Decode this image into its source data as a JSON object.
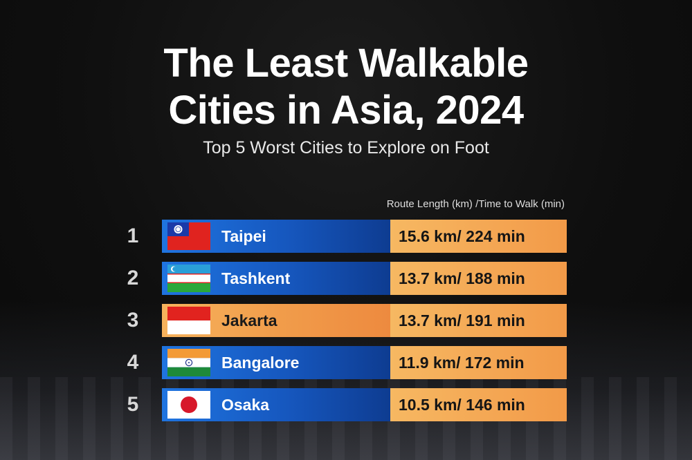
{
  "title_line1": "The Least Walkable",
  "title_line2": "Cities in Asia, 2024",
  "subtitle": "Top 5 Worst Cities to Explore on Foot",
  "column_header": "Route Length (km) /Time to Walk (min)",
  "colors": {
    "blue_bar": "#1657be",
    "orange_bar": "#f4a653",
    "background": "#111111"
  },
  "chart_data": {
    "type": "table",
    "title": "The Least Walkable Cities in Asia, 2024",
    "subtitle": "Top 5 Worst Cities to Explore on Foot",
    "columns": [
      "Route Length (km) /Time to Walk (min)"
    ],
    "rows": [
      {
        "rank": "1",
        "city": "Taipei",
        "flag": "taiwan-flag",
        "value_text": "15.6 km/ 224 min",
        "route_km": 15.6,
        "time_min": 224
      },
      {
        "rank": "2",
        "city": "Tashkent",
        "flag": "uzbekistan-flag",
        "value_text": "13.7 km/ 188 min",
        "route_km": 13.7,
        "time_min": 188
      },
      {
        "rank": "3",
        "city": "Jakarta",
        "flag": "indonesia-flag",
        "value_text": "13.7 km/ 191 min",
        "route_km": 13.7,
        "time_min": 191
      },
      {
        "rank": "4",
        "city": "Bangalore",
        "flag": "india-flag",
        "value_text": "11.9 km/ 172 min",
        "route_km": 11.9,
        "time_min": 172
      },
      {
        "rank": "5",
        "city": "Osaka",
        "flag": "japan-flag",
        "value_text": "10.5 km/ 146 min",
        "route_km": 10.5,
        "time_min": 146
      }
    ]
  }
}
